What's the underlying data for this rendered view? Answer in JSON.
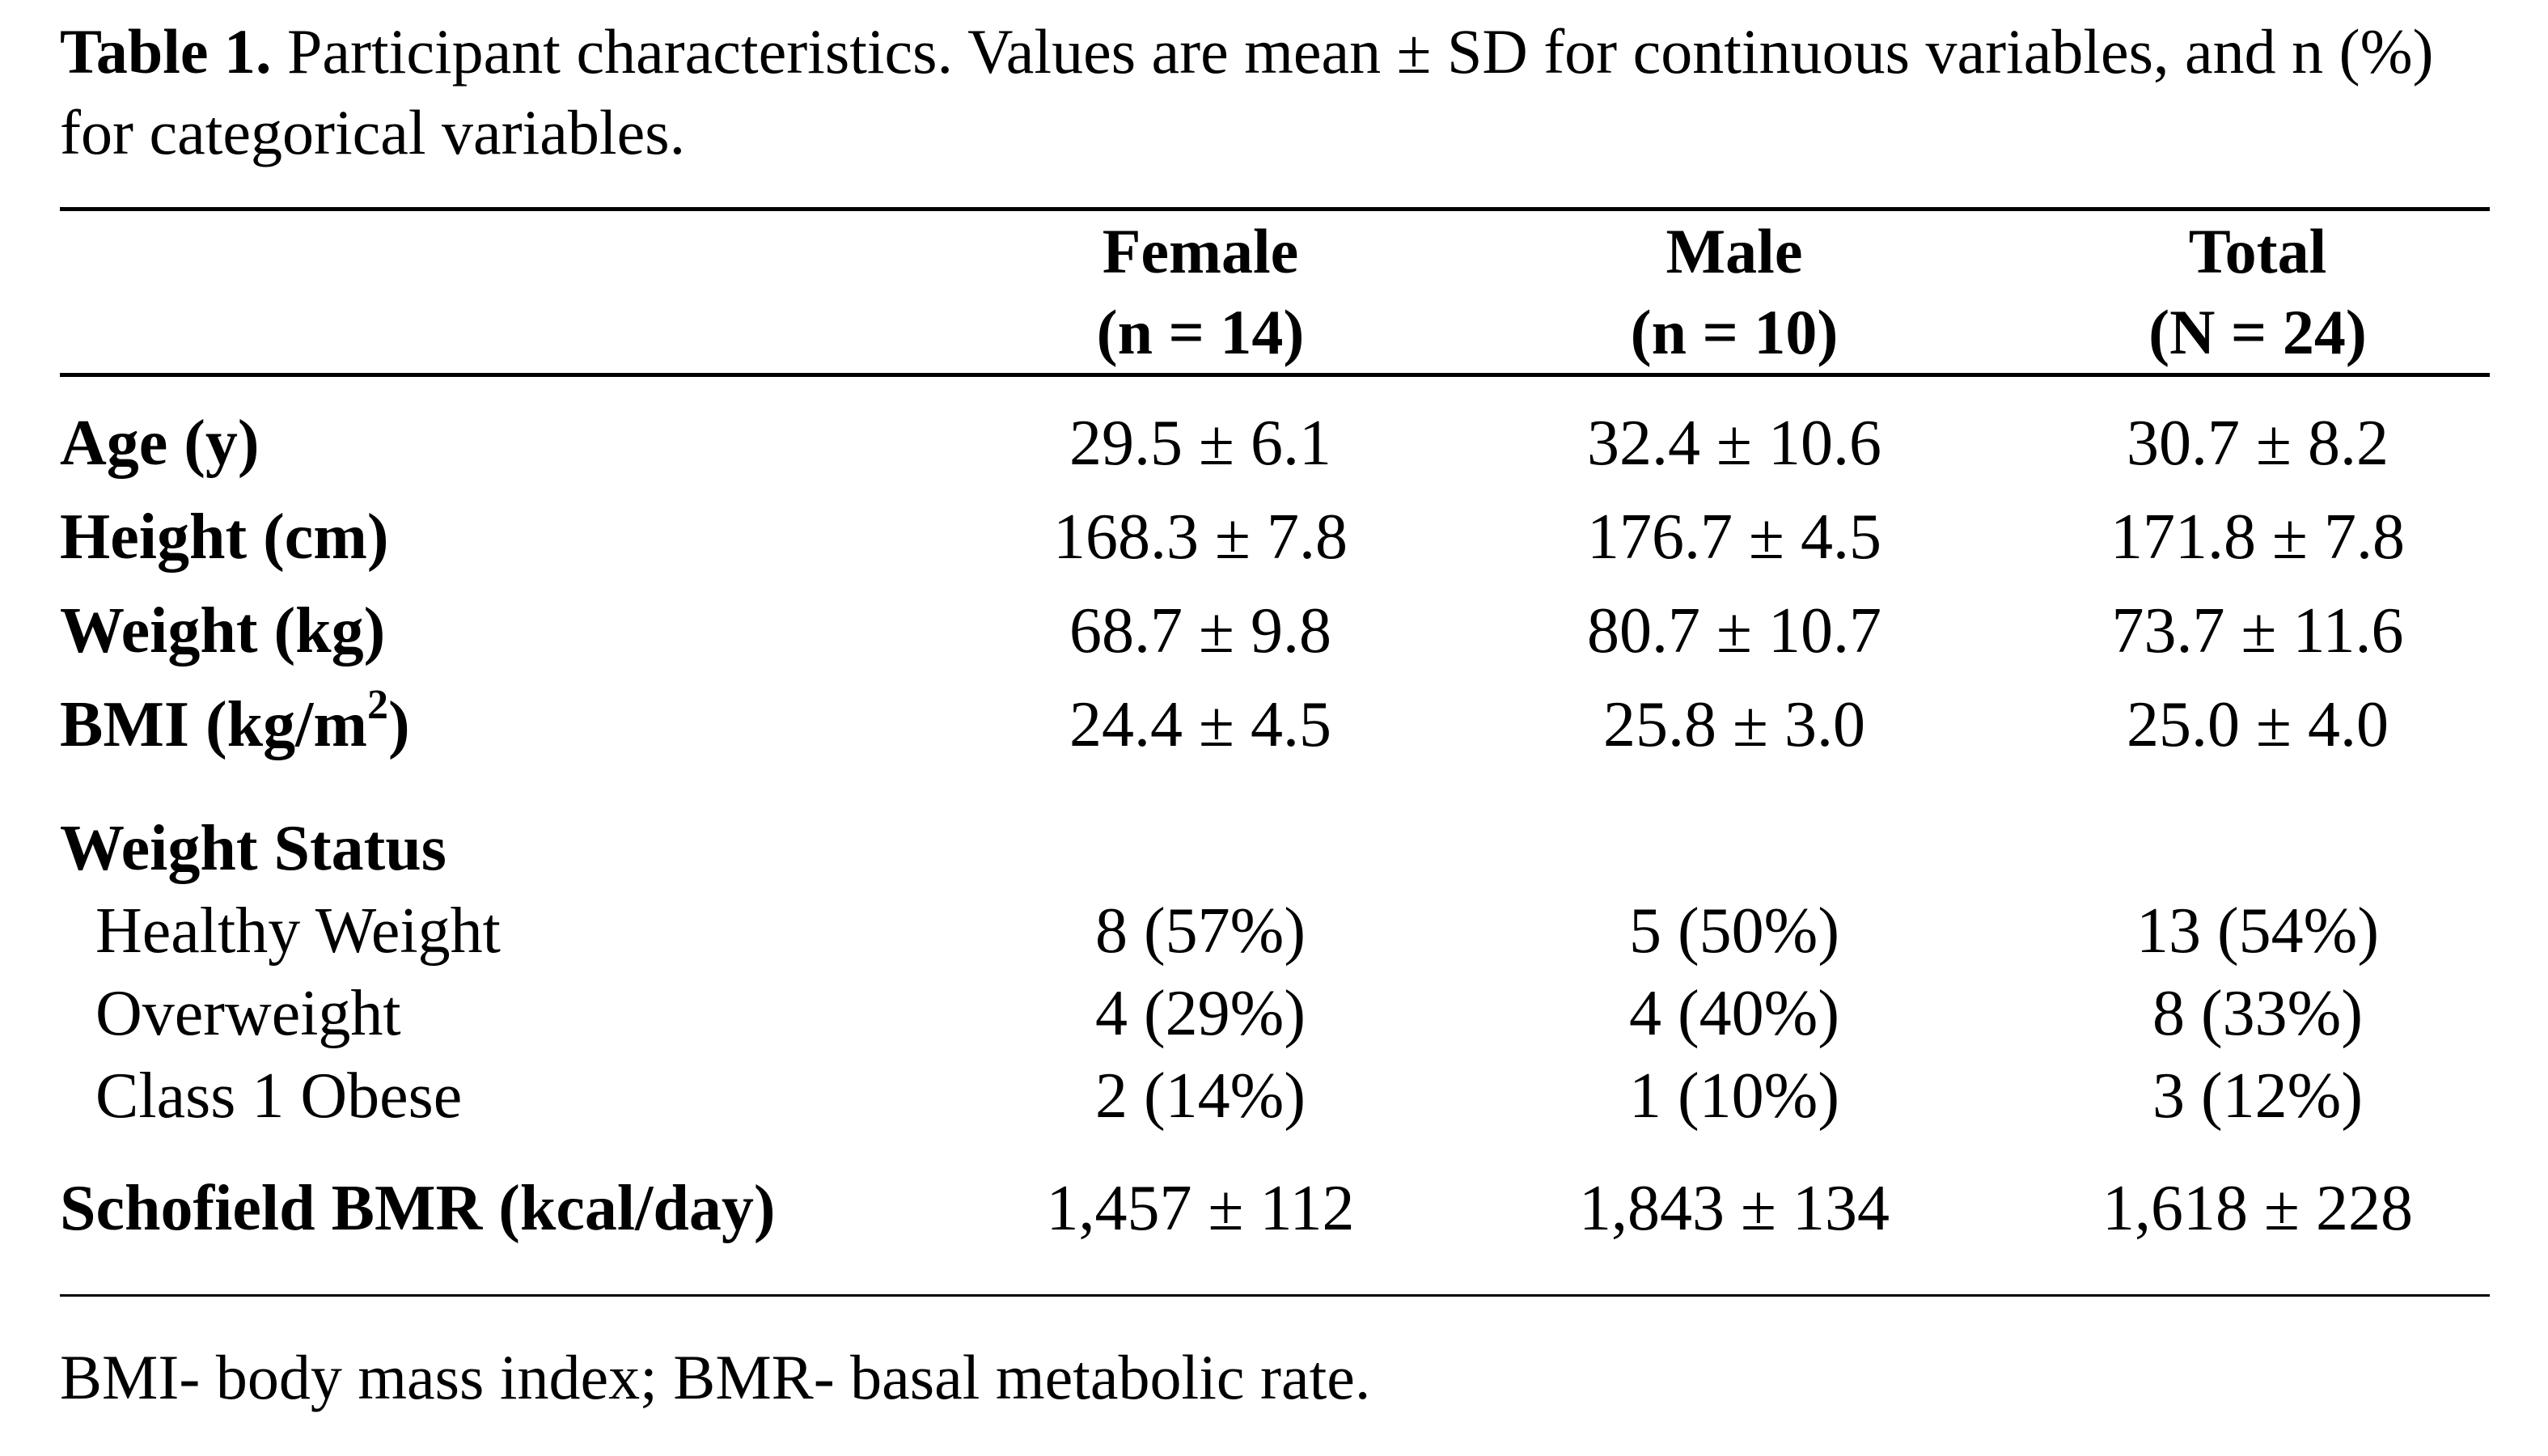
{
  "caption": {
    "label": "Table 1.",
    "text": " Participant characteristics. Values are mean ± SD for continuous variables, and n (%) for categorical variables."
  },
  "header": {
    "female": {
      "name": "Female",
      "n": "(n = 14)"
    },
    "male": {
      "name": "Male",
      "n": "(n = 10)"
    },
    "total": {
      "name": "Total",
      "n": "(N = 24)"
    }
  },
  "rows": {
    "age": {
      "label": "Age (y)",
      "female": "29.5 ± 6.1",
      "male": "32.4 ± 10.6",
      "total": "30.7 ± 8.2"
    },
    "height": {
      "label": "Height (cm)",
      "female": "168.3 ± 7.8",
      "male": "176.7 ± 4.5",
      "total": "171.8 ± 7.8"
    },
    "weight": {
      "label": "Weight (kg)",
      "female": "68.7 ± 9.8",
      "male": "80.7 ± 10.7",
      "total": "73.7 ± 11.6"
    },
    "bmi": {
      "label_main": "BMI (kg/m",
      "label_sup": "2",
      "label_end": ")",
      "female": "24.4 ± 4.5",
      "male": "25.8 ± 3.0",
      "total": "25.0 ± 4.0"
    }
  },
  "weight_status": {
    "heading": "Weight Status",
    "healthy": {
      "label": "Healthy Weight",
      "female": "8 (57%)",
      "male": "5 (50%)",
      "total": "13 (54%)"
    },
    "overweight": {
      "label": "Overweight",
      "female": "4 (29%)",
      "male": "4 (40%)",
      "total": "8 (33%)"
    },
    "obese": {
      "label": "Class 1 Obese",
      "female": "2 (14%)",
      "male": "1 (10%)",
      "total": "3 (12%)"
    }
  },
  "bmr": {
    "label": "Schofield BMR (kcal/day)",
    "female": "1,457 ± 112",
    "male": "1,843 ± 134",
    "total": "1,618 ± 228"
  },
  "footnote": "BMI- body mass index; BMR- basal metabolic rate."
}
